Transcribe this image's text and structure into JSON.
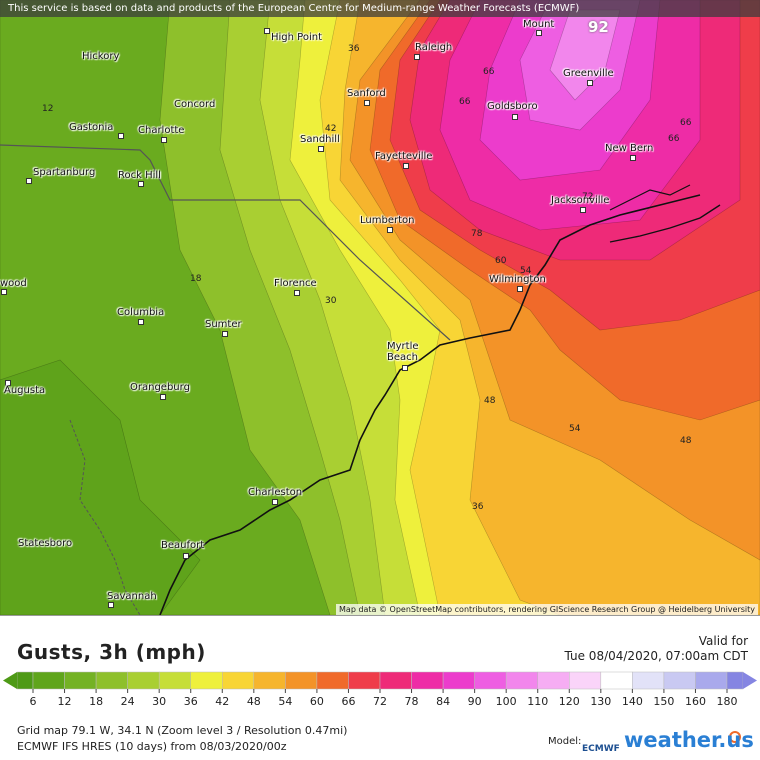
{
  "banner": "This service is based on data and products of the European Centre for Medium-range Weather Forecasts (ECMWF)",
  "attribution": "Map data © OpenStreetMap contributors, rendering GIScience Research Group @ Heidelberg University",
  "cities": [
    "Hickory",
    "Concord",
    "Gastonia",
    "Charlotte",
    "Spartanburg",
    "Rock Hill",
    "High Point",
    "Raleigh",
    "Mount",
    "Greenville",
    "Goldsboro",
    "Sanford",
    "Sandhill",
    "Fayetteville",
    "New Bern",
    "Jacksonville",
    "Lumberton",
    "Wilmington",
    "Florence",
    "Columbia",
    "Sumter",
    "Myrtle Beach",
    "wood",
    "Augusta",
    "Orangeburg",
    "Charleston",
    "Statesboro",
    "Beaufort",
    "Savannah"
  ],
  "contour_labels": [
    92,
    36,
    42,
    66,
    66,
    66,
    66,
    72,
    78,
    60,
    54,
    12,
    18,
    30,
    48,
    54,
    48,
    36
  ],
  "legend": {
    "title": "Gusts, 3h (mph)",
    "valid_label": "Valid for",
    "valid_time": "Tue 08/04/2020, 07:00am CDT",
    "ticks": [
      6,
      12,
      18,
      24,
      30,
      36,
      42,
      48,
      54,
      60,
      66,
      72,
      78,
      84,
      90,
      100,
      110,
      120,
      130,
      140,
      150,
      160,
      180
    ],
    "colors": [
      "#4e9a16",
      "#5fa51b",
      "#74b224",
      "#8ec02b",
      "#a9cf32",
      "#c6de38",
      "#eef03c",
      "#f8d535",
      "#f6b52d",
      "#f39328",
      "#f06a2a",
      "#ef3d4a",
      "#ee2a78",
      "#ee2ca6",
      "#ec3ccc",
      "#ee5ee2",
      "#f286ec",
      "#f6adf3",
      "#fad4f9",
      "#ffffff",
      "#e2e2f8",
      "#c9c9f2",
      "#a9a9ec",
      "#8585e2"
    ]
  },
  "footer": {
    "grid": "Grid map 79.1 W, 34.1 N (Zoom level 3 / Resolution 0.47mi)",
    "model_run": "ECMWF IFS HRES (10 days) from 08/03/2020/00z",
    "model_label": "Model:",
    "model_name": "ECMWF",
    "brand": "weather.us"
  }
}
